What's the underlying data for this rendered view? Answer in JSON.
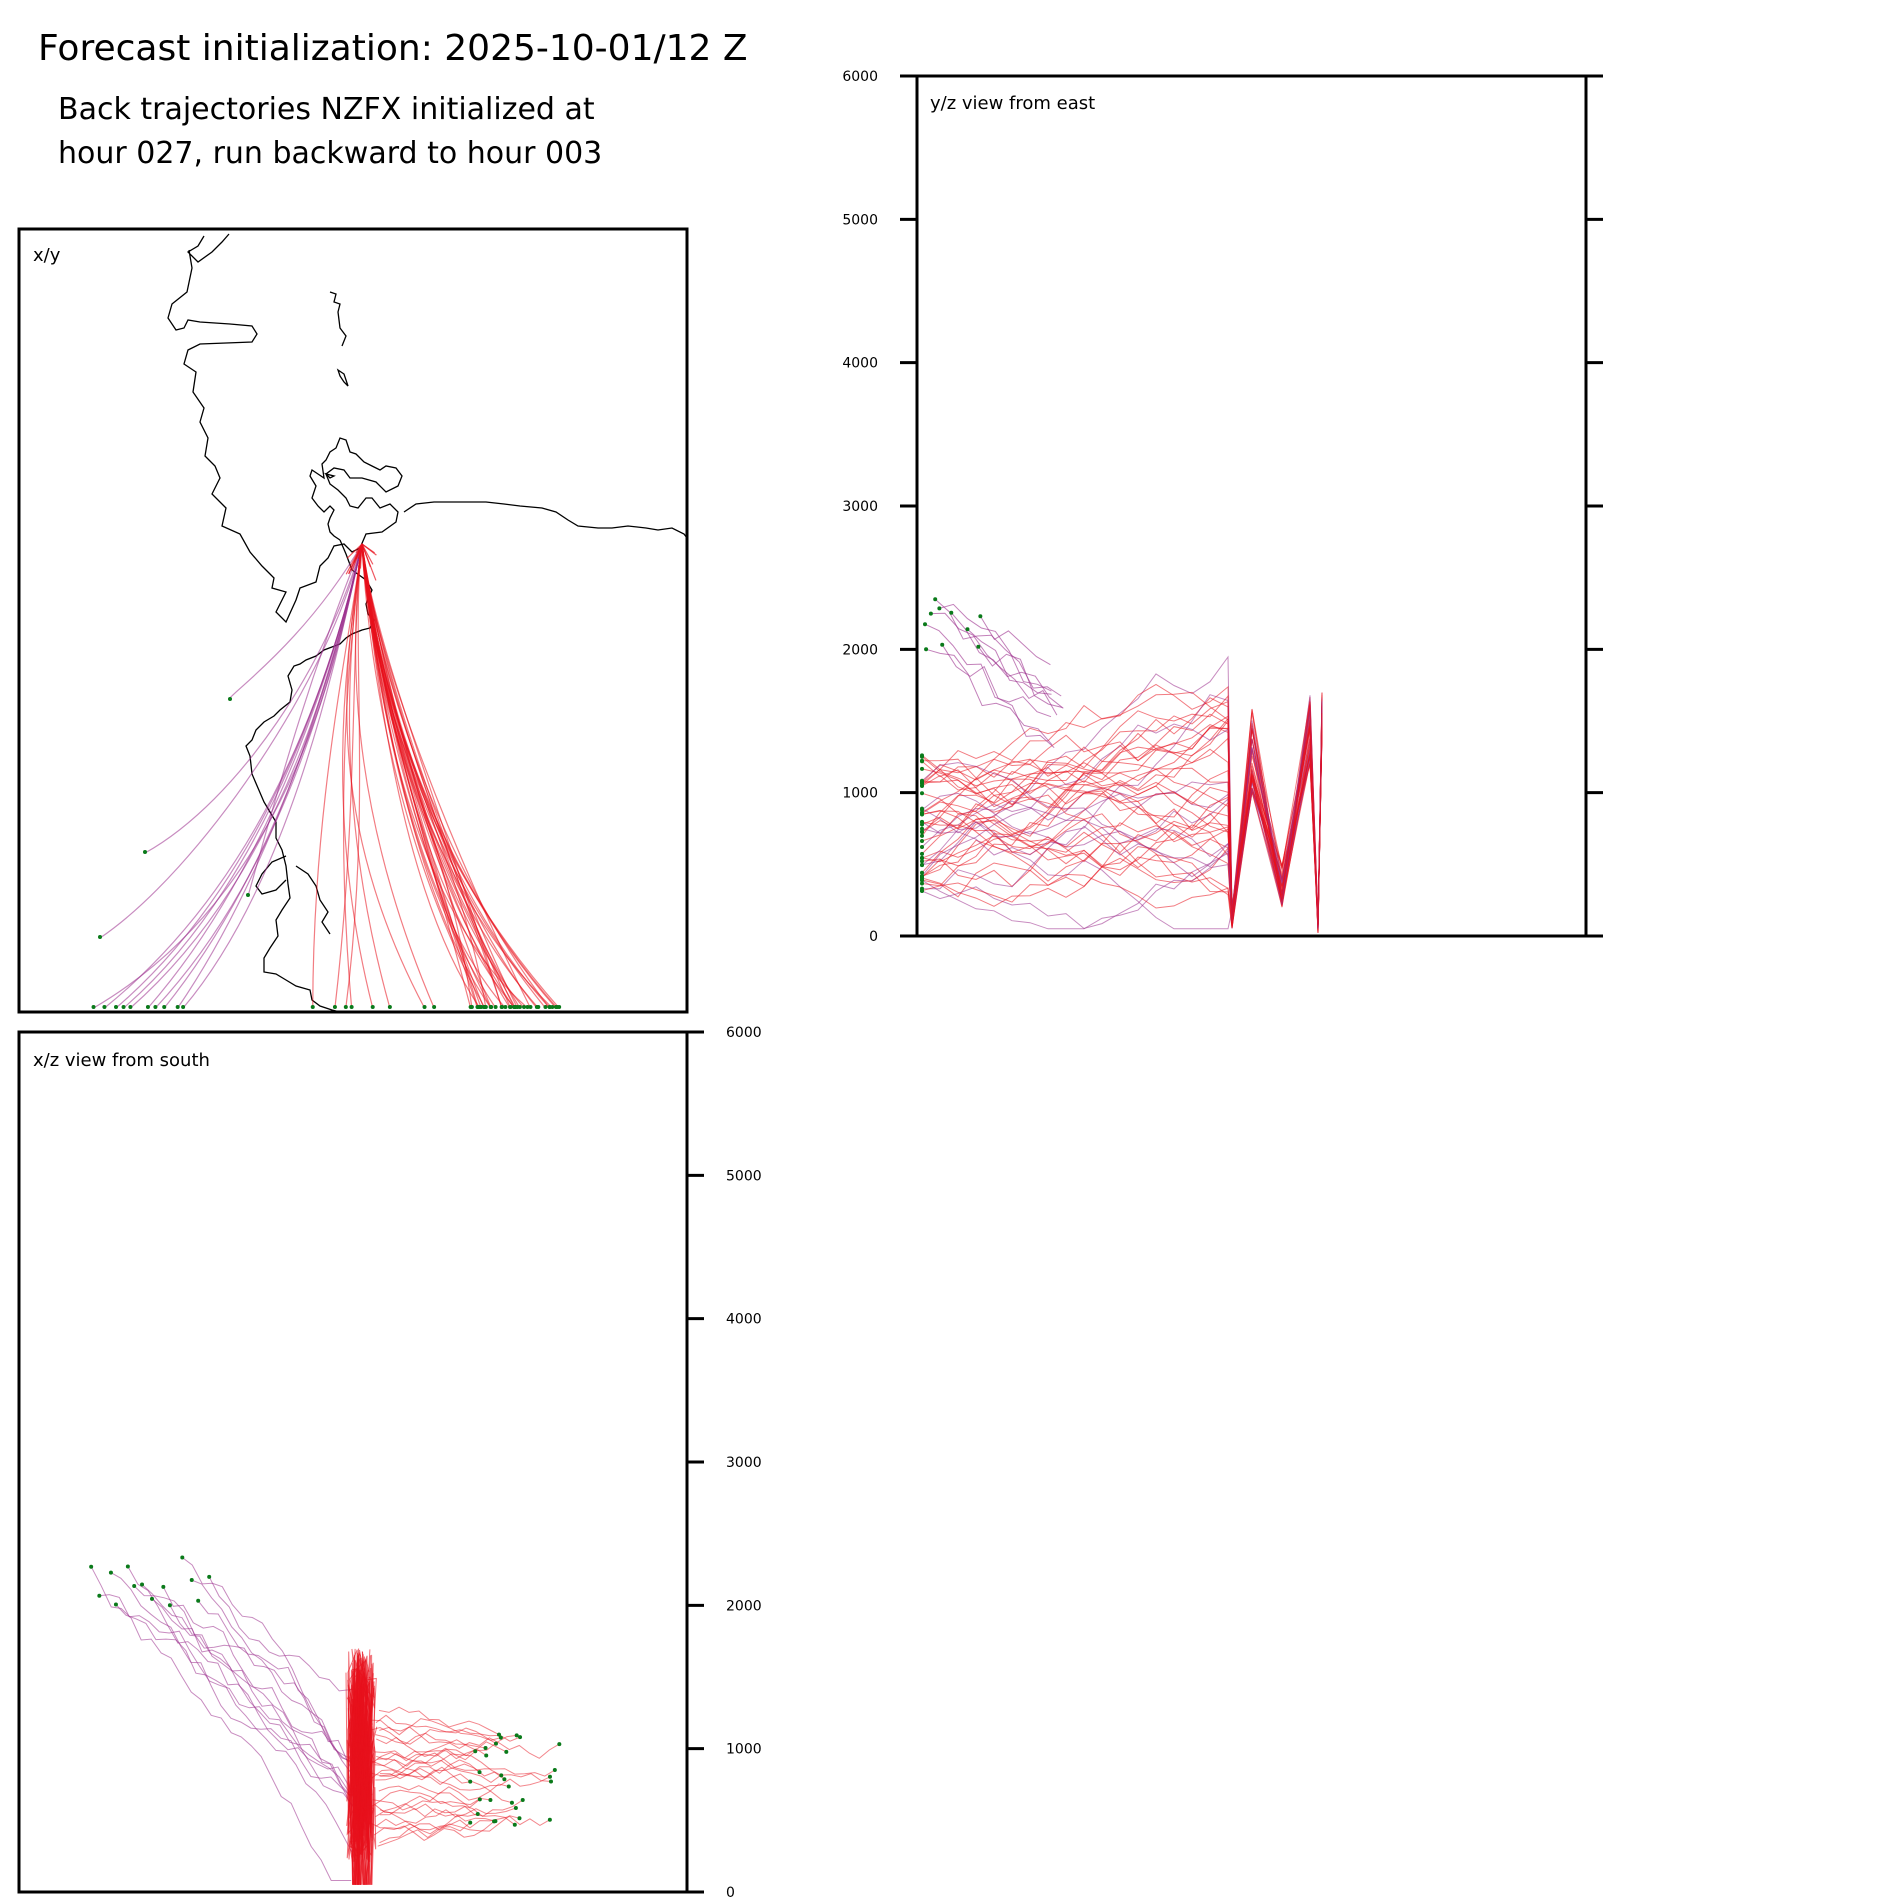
{
  "header": {
    "title": "Forecast initialization: 2025-10-01/12 Z",
    "subtitle_line1": "Back trajectories NZFX initialized at",
    "subtitle_line2": "hour 027, run backward to hour 003"
  },
  "colors": {
    "trajectory_near": "#e8101c",
    "trajectory_far": "#9b2d8c",
    "start_marker": "#0a7a1a",
    "coastline": "#000000",
    "frame": "#000000"
  },
  "chart_data": [
    {
      "id": "xy",
      "type": "line",
      "panel_label": "x/y",
      "description_source": "map view, trajectories converge on NZFX",
      "axis_ticks": [],
      "series_count": 60
    },
    {
      "id": "yz",
      "type": "line",
      "panel_label": "y/z view from east",
      "ylim": [
        0,
        6000
      ],
      "yticks": [
        "0",
        "1000",
        "2000",
        "3000",
        "4000",
        "5000",
        "6000"
      ],
      "series_count": 60
    },
    {
      "id": "xz",
      "type": "line",
      "panel_label": "x/z view from south",
      "ylim": [
        0,
        6000
      ],
      "yticks": [
        "0",
        "1000",
        "2000",
        "3000",
        "4000",
        "5000",
        "6000"
      ],
      "series_count": 60
    }
  ]
}
